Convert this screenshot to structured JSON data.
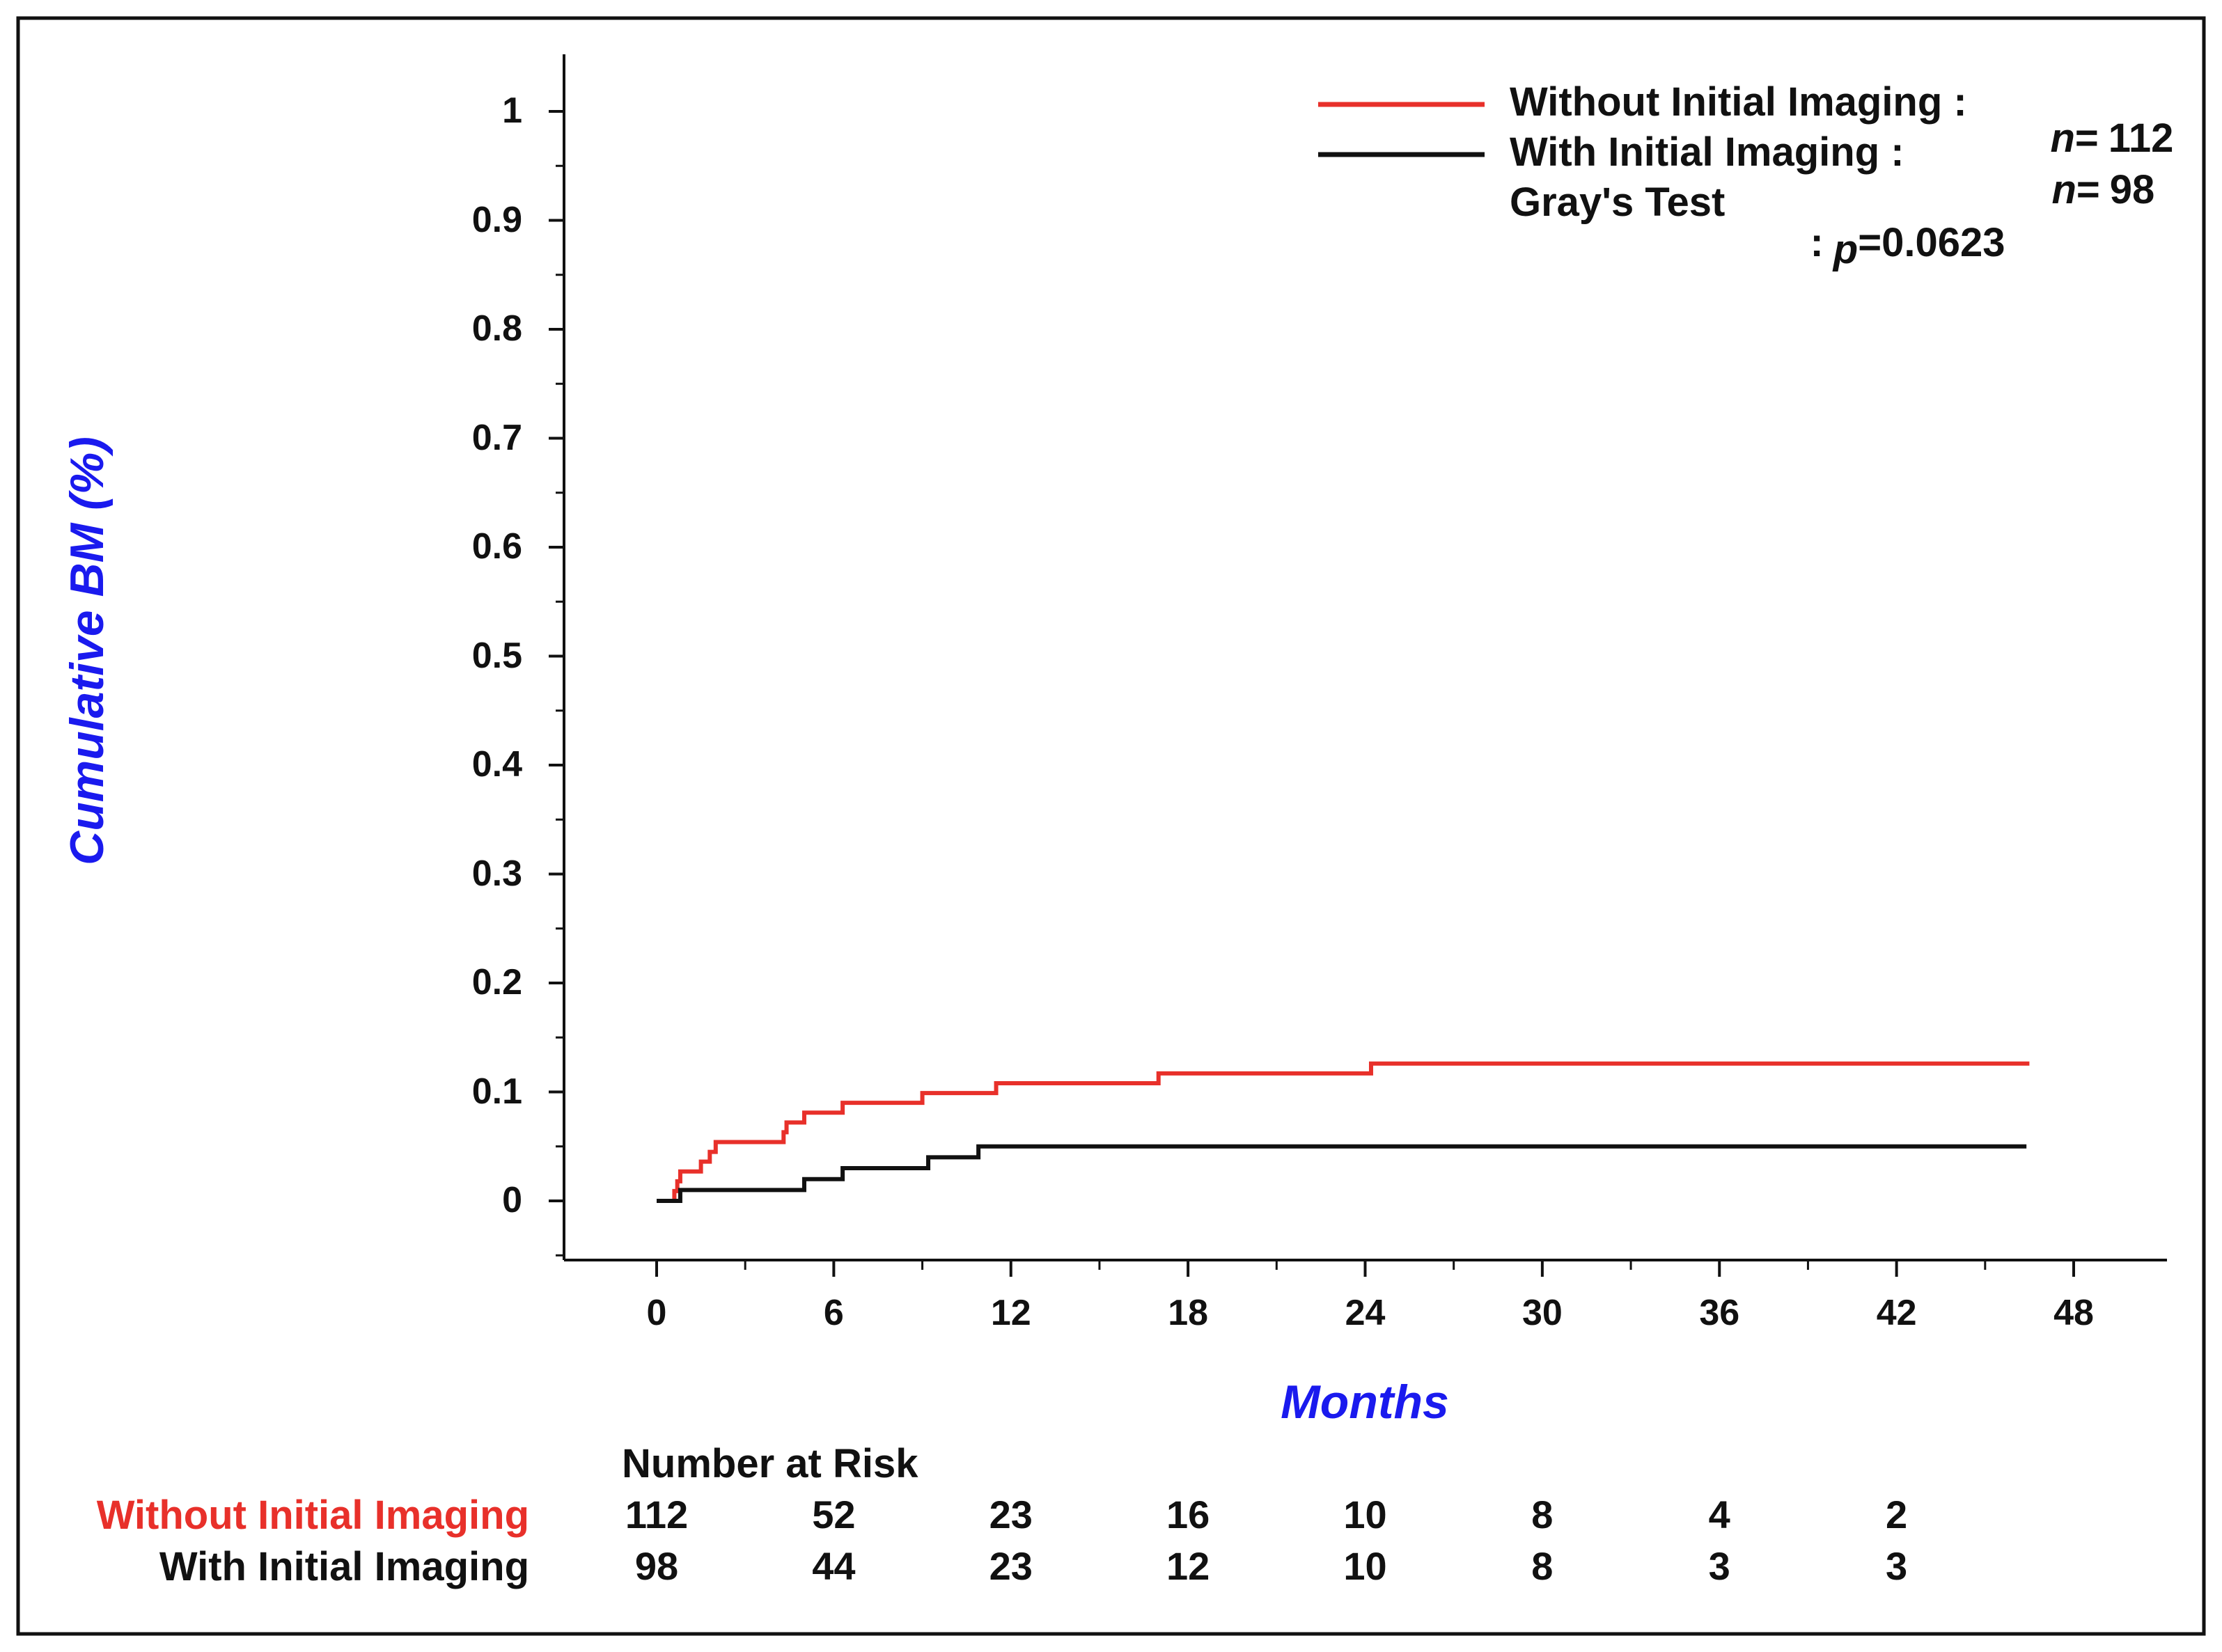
{
  "chart_data": {
    "type": "line",
    "title": "",
    "xlabel": "Months",
    "ylabel": "Cumulative BM (%)",
    "xlim": [
      0,
      48
    ],
    "ylim": [
      0,
      1
    ],
    "x_ticks": [
      "0",
      "6",
      "12",
      "18",
      "24",
      "30",
      "36",
      "42",
      "48"
    ],
    "y_ticks": [
      "0",
      "0.1",
      "0.2",
      "0.3",
      "0.4",
      "0.5",
      "0.6",
      "0.7",
      "0.8",
      "0.9",
      "1"
    ],
    "grid": false,
    "legend_position": "top-right",
    "series": [
      {
        "name": "Without Initial Imaging",
        "n_label": "n=",
        "n": "112",
        "color": "#e8302a",
        "step_points": [
          [
            0,
            0
          ],
          [
            0.6,
            0.009
          ],
          [
            0.7,
            0.018
          ],
          [
            0.8,
            0.027
          ],
          [
            1.5,
            0.036
          ],
          [
            1.8,
            0.045
          ],
          [
            2.0,
            0.054
          ],
          [
            4.3,
            0.063
          ],
          [
            4.4,
            0.072
          ],
          [
            5.0,
            0.081
          ],
          [
            6.3,
            0.09
          ],
          [
            9.0,
            0.099
          ],
          [
            11.5,
            0.108
          ],
          [
            17.0,
            0.117
          ],
          [
            24.2,
            0.126
          ],
          [
            46.5,
            0.126
          ]
        ]
      },
      {
        "name": "With Initial Imaging",
        "n_label": "n=",
        "n": "98",
        "color": "#111111",
        "step_points": [
          [
            0,
            0
          ],
          [
            0.8,
            0.01
          ],
          [
            5.0,
            0.02
          ],
          [
            6.3,
            0.03
          ],
          [
            9.2,
            0.04
          ],
          [
            10.9,
            0.05
          ],
          [
            46.4,
            0.05
          ]
        ]
      }
    ],
    "annotation": {
      "label": "Gray's Test",
      "colon": ":",
      "p_label": "p",
      "p_value": "=0.0623"
    },
    "risk_table": {
      "title": "Number at Risk",
      "rows": [
        {
          "label": "Without Initial Imaging",
          "color": "#e8302a",
          "values": [
            "112",
            "52",
            "23",
            "16",
            "10",
            "8",
            "4",
            "2"
          ]
        },
        {
          "label": "With Initial Imaging",
          "color": "#111111",
          "values": [
            "98",
            "44",
            "23",
            "12",
            "10",
            "8",
            "3",
            "3"
          ]
        }
      ]
    },
    "legend": {
      "row1_text": "Without Initial Imaging :",
      "row2_text": "With Initial Imaging :",
      "n_prefix": "n",
      "n_eq": "="
    }
  }
}
